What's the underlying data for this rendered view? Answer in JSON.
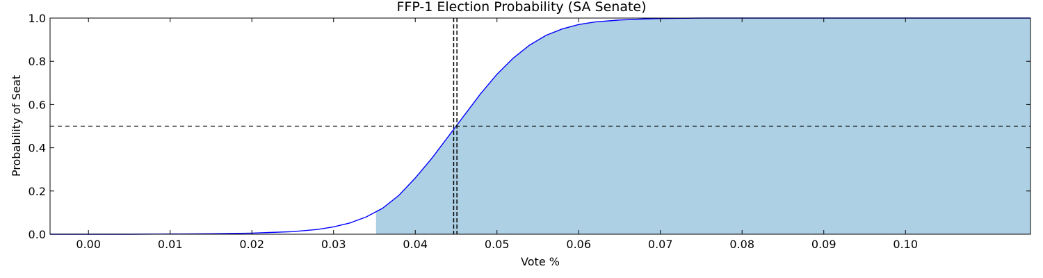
{
  "chart_data": {
    "type": "area",
    "title": "FFP-1 Election Probability (SA Senate)",
    "xlabel": "Vote %",
    "ylabel": "Probability of Seat",
    "xlim": [
      -0.0047,
      0.1153
    ],
    "ylim": [
      0.0,
      1.0
    ],
    "xticks": [
      0.0,
      0.01,
      0.02,
      0.03,
      0.04,
      0.05,
      0.06,
      0.07,
      0.08,
      0.09,
      0.1
    ],
    "xtick_labels": [
      "0.00",
      "0.01",
      "0.02",
      "0.03",
      "0.04",
      "0.05",
      "0.06",
      "0.07",
      "0.08",
      "0.09",
      "0.10"
    ],
    "yticks": [
      0.0,
      0.2,
      0.4,
      0.6,
      0.8,
      1.0
    ],
    "ytick_labels": [
      "0.0",
      "0.2",
      "0.4",
      "0.6",
      "0.8",
      "1.0"
    ],
    "grid": false,
    "series": [
      {
        "x": [
          -0.0047,
          0.0,
          0.005,
          0.01,
          0.015,
          0.02,
          0.025,
          0.028,
          0.03,
          0.032,
          0.034,
          0.036,
          0.038,
          0.04,
          0.042,
          0.044,
          0.045,
          0.046,
          0.048,
          0.05,
          0.052,
          0.054,
          0.056,
          0.058,
          0.06,
          0.062,
          0.065,
          0.068,
          0.07,
          0.075,
          0.08,
          0.09,
          0.1,
          0.11,
          0.1153
        ],
        "y": [
          0.0,
          0.0,
          0.0,
          0.001,
          0.002,
          0.005,
          0.012,
          0.022,
          0.034,
          0.052,
          0.08,
          0.12,
          0.18,
          0.26,
          0.35,
          0.45,
          0.5,
          0.55,
          0.65,
          0.74,
          0.815,
          0.875,
          0.92,
          0.95,
          0.97,
          0.982,
          0.991,
          0.996,
          0.998,
          1.0,
          1.0,
          1.0,
          1.0,
          1.0,
          1.0
        ],
        "color": "#0000ff"
      }
    ],
    "fill": {
      "from_x": 0.0352,
      "color": "#aed0e4"
    },
    "reference_lines": [
      {
        "orientation": "horizontal",
        "value": 0.5,
        "style": "dashed",
        "color": "#000000"
      },
      {
        "orientation": "vertical",
        "value": 0.0447,
        "style": "dashed",
        "color": "#000000"
      },
      {
        "orientation": "vertical",
        "value": 0.0451,
        "style": "dashed",
        "color": "#000000"
      }
    ]
  }
}
